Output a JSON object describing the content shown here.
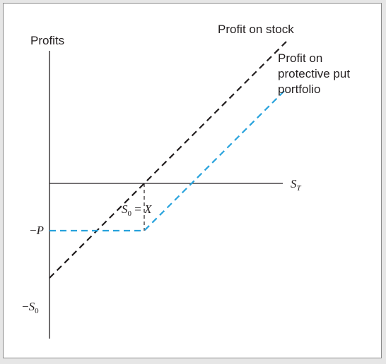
{
  "colors": {
    "stock_line": "#231f20",
    "protective_put_line": "#27a2dc",
    "axis": "#231f20",
    "background": "#ffffff"
  },
  "chart_data": {
    "type": "line",
    "xlabel": "S",
    "xlabel_subscript": "T",
    "ylabel": "Profits",
    "ticks": {
      "neg_p": {
        "prefix": "−",
        "symbol": "P"
      },
      "neg_s0": {
        "prefix": "−",
        "symbol": "S",
        "subscript": "0"
      },
      "strike": {
        "symbol": "S",
        "subscript": "0",
        "eq": " = ",
        "rhs": "X"
      }
    },
    "x_range": [
      0,
      2.5
    ],
    "y_range": [
      -1.6,
      1.6
    ],
    "strike": 1,
    "put_premium": 0.5,
    "series": [
      {
        "name": "Profit on stock",
        "style": "dashed",
        "x": [
          0,
          2.5
        ],
        "y": [
          -1,
          1.5
        ]
      },
      {
        "name": "Profit on protective put portfolio",
        "style": "dashed",
        "x": [
          0,
          1,
          2.5
        ],
        "y": [
          -0.5,
          -0.5,
          1
        ]
      }
    ],
    "annotations": {
      "stock_label": "Profit on stock",
      "put_label_lines": [
        "Profit on",
        "protective put",
        "portfolio"
      ]
    }
  }
}
